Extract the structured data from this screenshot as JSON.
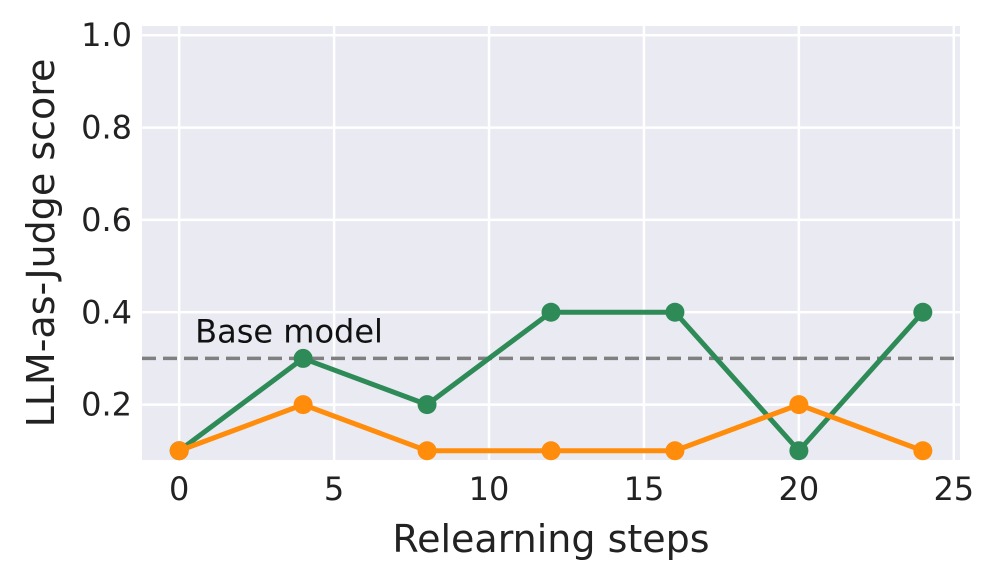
{
  "chart_data": {
    "type": "line",
    "title": "",
    "xlabel": "Relearning steps",
    "ylabel": "LLM-as-Judge score",
    "xlim": [
      -1.2,
      25.2
    ],
    "ylim": [
      0.08,
      1.02
    ],
    "xticks": [
      0,
      5,
      10,
      15,
      20,
      25
    ],
    "yticks": [
      0.2,
      0.4,
      0.6,
      0.8,
      1.0
    ],
    "xtick_labels": [
      "0",
      "5",
      "10",
      "15",
      "20",
      "25"
    ],
    "ytick_labels": [
      "0.2",
      "0.4",
      "0.6",
      "0.8",
      "1.0"
    ],
    "grid": true,
    "legend": "none",
    "series": [
      {
        "color": "#2e8b57",
        "x": [
          0,
          4,
          8,
          12,
          16,
          20,
          24
        ],
        "y": [
          0.1,
          0.3,
          0.2,
          0.4,
          0.4,
          0.1,
          0.4
        ]
      },
      {
        "color": "#ff8c0a",
        "x": [
          0,
          4,
          8,
          12,
          16,
          20,
          24
        ],
        "y": [
          0.1,
          0.2,
          0.1,
          0.1,
          0.1,
          0.2,
          0.1
        ]
      }
    ],
    "reference_line": {
      "label": "Base model",
      "y": 0.3,
      "color": "#808080",
      "style": "dashed"
    }
  }
}
